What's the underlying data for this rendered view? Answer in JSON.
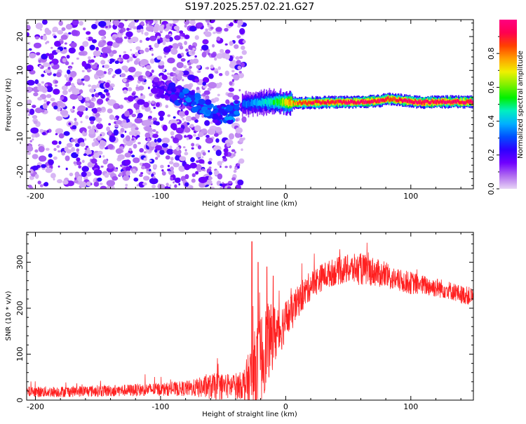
{
  "title": "S197.2025.257.02.21.G27",
  "chart_data": [
    {
      "type": "heatmap",
      "id": "spectrogram",
      "xlabel": "Height of straight line (km)",
      "ylabel": "Frequency (Hz)",
      "xlim": [
        -207,
        150
      ],
      "ylim": [
        -25,
        25
      ],
      "xticks": [
        -200,
        -100,
        0,
        100
      ],
      "yticks": [
        -20,
        -10,
        0,
        10,
        20
      ],
      "colorbar": {
        "label": "Normalized spectral amplitude",
        "range": [
          0.0,
          1.0
        ],
        "ticks": [
          0.0,
          0.2,
          0.4,
          0.6,
          0.8
        ],
        "stops": [
          "#e8d5f5",
          "#b06bf0",
          "#7000ff",
          "#2e00ff",
          "#0050ff",
          "#00b0ff",
          "#00f0c0",
          "#00f000",
          "#80f000",
          "#f0f000",
          "#ffa000",
          "#ff4000",
          "#ff0050",
          "#ff0080"
        ]
      },
      "noise_region_x": [
        -207,
        -33
      ],
      "band": {
        "x": [
          -35,
          -20,
          -5,
          0,
          10,
          20,
          40,
          60,
          75,
          80,
          85,
          90,
          100,
          110,
          120,
          150
        ],
        "center_hz": [
          0,
          0.5,
          0.7,
          0.5,
          0.3,
          0.5,
          0.6,
          0.7,
          1.0,
          1.5,
          1.5,
          1.3,
          0.8,
          0.6,
          0.7,
          0.7
        ],
        "amplitude": [
          0.3,
          0.4,
          0.55,
          0.7,
          0.85,
          0.9,
          0.9,
          0.95,
          0.95,
          0.9,
          0.9,
          0.9,
          0.95,
          0.95,
          0.95,
          0.95
        ]
      },
      "descending_streak": {
        "x": [
          -105,
          -95,
          -85,
          -75,
          -65,
          -55,
          -45,
          -38
        ],
        "center_hz": [
          5,
          4,
          2.5,
          1,
          -1,
          -3,
          -3,
          -1
        ],
        "amplitude": [
          0.15,
          0.2,
          0.25,
          0.3,
          0.3,
          0.25,
          0.3,
          0.3
        ]
      }
    },
    {
      "type": "line",
      "id": "snr",
      "xlabel": "Height of straight line (km)",
      "ylabel": "SNR (10 * v/v)",
      "xlim": [
        -207,
        150
      ],
      "ylim": [
        0,
        365
      ],
      "xticks": [
        -200,
        -100,
        0,
        100
      ],
      "yticks": [
        0,
        100,
        200,
        300
      ],
      "series": [
        {
          "name": "SNR",
          "color": "#ff2020",
          "x": [
            -207,
            -190,
            -170,
            -150,
            -130,
            -110,
            -90,
            -75,
            -65,
            -55,
            -45,
            -35,
            -30,
            -25,
            -20,
            -15,
            -10,
            -5,
            0,
            5,
            10,
            20,
            30,
            40,
            50,
            60,
            70,
            80,
            90,
            100,
            110,
            120,
            130,
            140,
            150
          ],
          "values": [
            18,
            18,
            19,
            20,
            21,
            23,
            24,
            26,
            28,
            30,
            30,
            32,
            40,
            60,
            90,
            120,
            140,
            150,
            175,
            190,
            215,
            250,
            270,
            280,
            285,
            285,
            280,
            270,
            260,
            255,
            250,
            245,
            240,
            230,
            225
          ],
          "spread": [
            12,
            12,
            12,
            13,
            13,
            14,
            15,
            18,
            25,
            30,
            28,
            30,
            60,
            90,
            100,
            90,
            70,
            55,
            45,
            40,
            35,
            32,
            30,
            30,
            32,
            35,
            32,
            28,
            25,
            25,
            22,
            22,
            20,
            20,
            20
          ],
          "spikes": [
            {
              "x": -27,
              "value": 345
            },
            {
              "x": -22,
              "value": 300
            },
            {
              "x": -15,
              "value": 290
            },
            {
              "x": -10,
              "value": 270
            }
          ]
        }
      ]
    }
  ]
}
